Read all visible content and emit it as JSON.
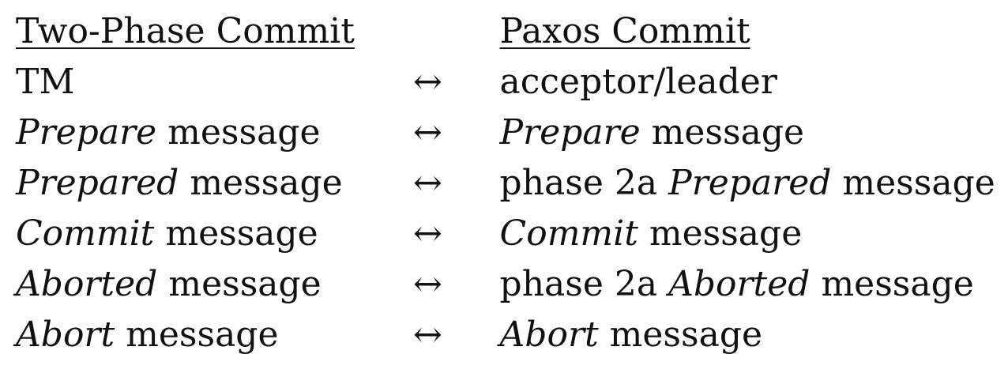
{
  "header": {
    "left": "Two-Phase Commit",
    "right": "Paxos Commit"
  },
  "arrow": "↔",
  "rows": [
    {
      "left": {
        "italic": "",
        "rest": "TM"
      },
      "right": {
        "prefix": "acceptor/leader",
        "italic": "",
        "rest": ""
      }
    },
    {
      "left": {
        "italic": "Prepare",
        "rest": " message"
      },
      "right": {
        "prefix": "",
        "italic": "Prepare",
        "rest": " message"
      }
    },
    {
      "left": {
        "italic": "Prepared",
        "rest": " message"
      },
      "right": {
        "prefix": "phase 2a ",
        "italic": "Prepared",
        "rest": " message"
      }
    },
    {
      "left": {
        "italic": "Commit",
        "rest": " message"
      },
      "right": {
        "prefix": "",
        "italic": "Commit",
        "rest": " message"
      }
    },
    {
      "left": {
        "italic": "Aborted",
        "rest": " message"
      },
      "right": {
        "prefix": "phase 2a ",
        "italic": "Aborted",
        "rest": " message"
      }
    },
    {
      "left": {
        "italic": "Abort",
        "rest": " message"
      },
      "right": {
        "prefix": "",
        "italic": "Abort",
        "rest": " message"
      }
    }
  ]
}
